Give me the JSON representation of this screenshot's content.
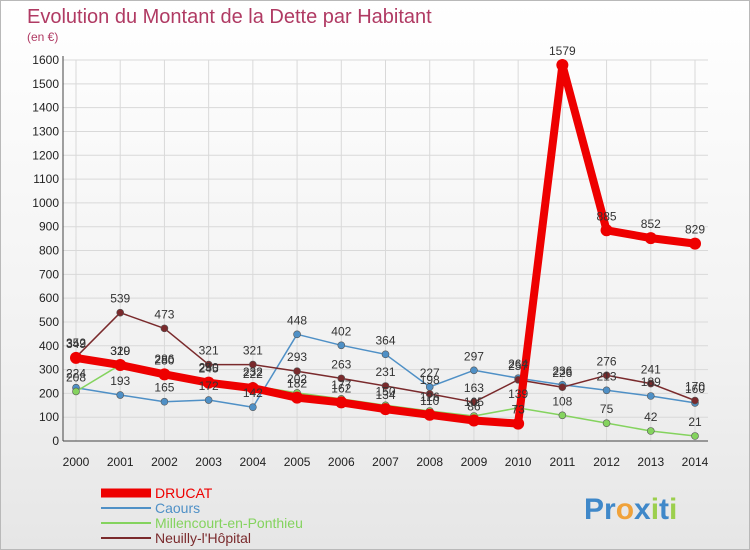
{
  "chart_data": {
    "type": "line",
    "title": "Evolution du Montant de la Dette par Habitant",
    "subtitle": "(en €)",
    "x": [
      "2000",
      "2001",
      "2002",
      "2003",
      "2004",
      "2005",
      "2006",
      "2007",
      "2008",
      "2009",
      "2010",
      "2011",
      "2012",
      "2013",
      "2014"
    ],
    "ylim": [
      0,
      1600
    ],
    "yticks": [
      0,
      100,
      200,
      300,
      400,
      500,
      600,
      700,
      800,
      900,
      1000,
      1100,
      1200,
      1300,
      1400,
      1500,
      1600
    ],
    "grid": true,
    "legend_position": "bottom-left",
    "series": [
      {
        "name": "DRUCAT",
        "color": "#ee0000",
        "values": [
          349,
          319,
          280,
          245,
          222,
          182,
          162,
          134,
          110,
          86,
          73,
          1579,
          885,
          852,
          829
        ],
        "labels": [
          "349",
          "319",
          "280",
          "245",
          "222",
          "182",
          "162",
          "134",
          "110",
          "86",
          "73",
          "1579",
          "885",
          "852",
          "829"
        ]
      },
      {
        "name": "Caours",
        "color": "#4f90c6",
        "values": [
          224,
          193,
          165,
          172,
          142,
          448,
          402,
          364,
          227,
          297,
          264,
          236,
          213,
          189,
          160
        ],
        "labels": [
          "224",
          "193",
          "165",
          "172",
          "142",
          "448",
          "402",
          "364",
          "227",
          "297",
          "264",
          "236",
          "213",
          "189",
          "160"
        ]
      },
      {
        "name": "Millencourt-en-Ponthieu",
        "color": "#84d35e",
        "values": [
          208,
          320,
          286,
          250,
          232,
          202,
          177,
          150,
          126,
          105,
          139,
          108,
          75,
          42,
          21
        ],
        "labels": [
          "208",
          "320",
          "286",
          "250",
          "232",
          "202",
          "177",
          "150",
          "126",
          "105",
          "139",
          "108",
          "75",
          "42",
          "21"
        ]
      },
      {
        "name": "Neuilly-l'Hôpital",
        "color": "#7a2a2c",
        "values": [
          352,
          539,
          473,
          321,
          321,
          293,
          263,
          231,
          198,
          163,
          257,
          226,
          276,
          241,
          170
        ],
        "labels": [
          "352",
          "539",
          "473",
          "321",
          "321",
          "293",
          "263",
          "231",
          "198",
          "163",
          "257",
          "226",
          "276",
          "241",
          "170"
        ]
      }
    ]
  },
  "branding": {
    "logo_parts": [
      {
        "text": "Pr",
        "color": "#3f88c9"
      },
      {
        "text": "o",
        "color": "#f0a23a"
      },
      {
        "text": "x",
        "color": "#3f88c9"
      },
      {
        "text": "i",
        "color": "#9ccf4d"
      },
      {
        "text": "t",
        "color": "#3f88c9"
      },
      {
        "text": "i",
        "color": "#9ccf4d"
      }
    ]
  }
}
